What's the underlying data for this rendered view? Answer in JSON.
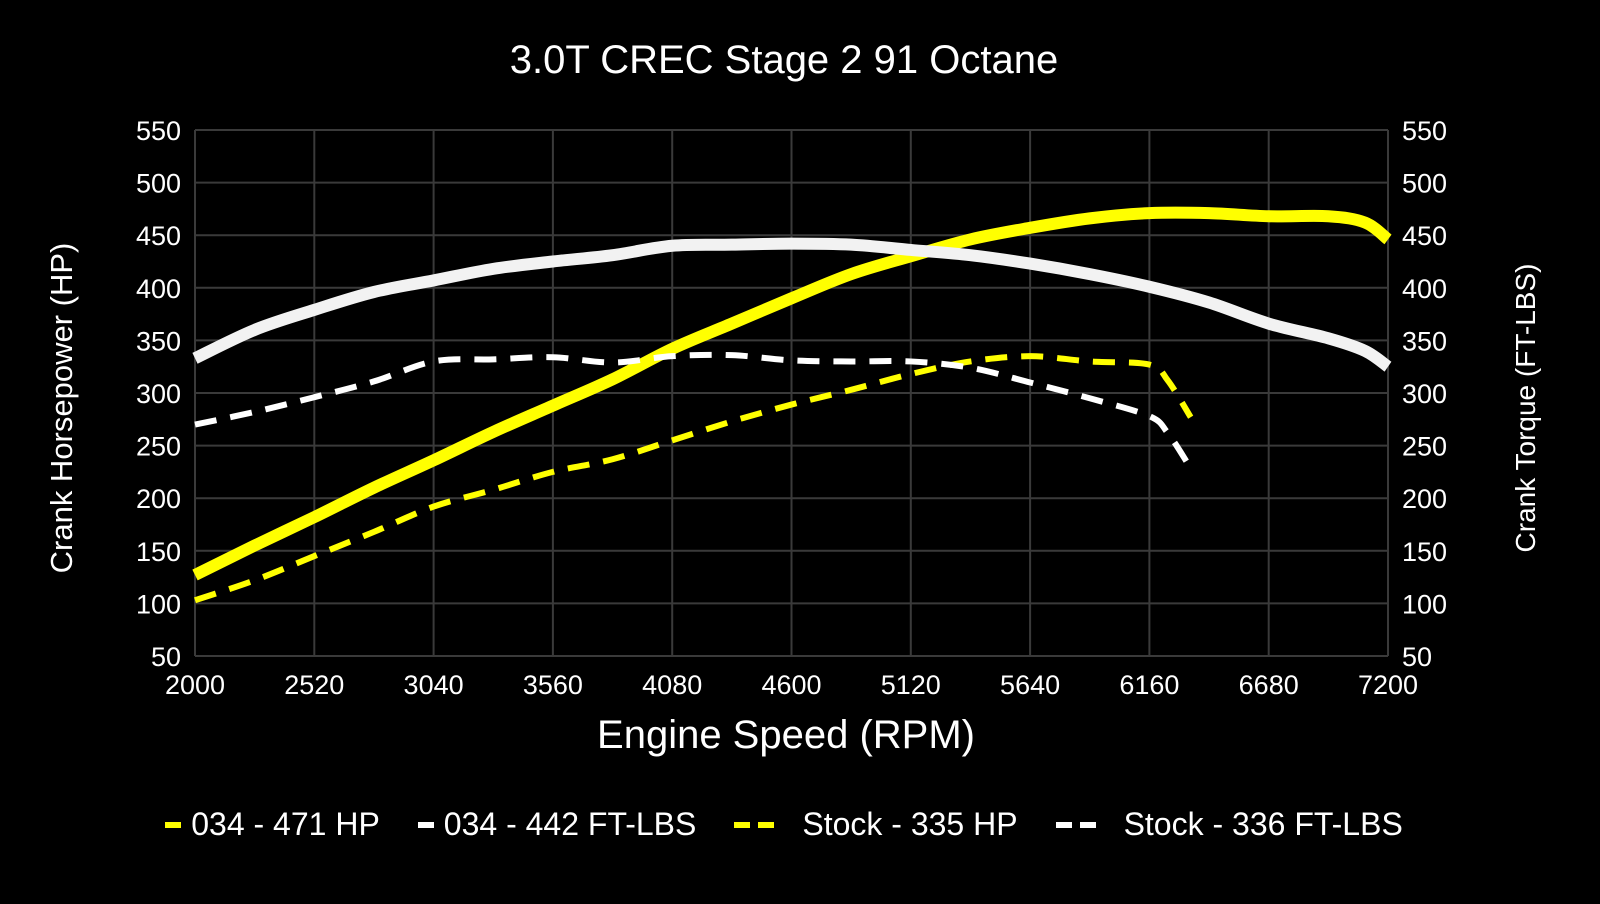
{
  "chart_data": {
    "type": "line",
    "title": "3.0T CREC Stage 2 91 Octane",
    "xlabel": "Engine Speed (RPM)",
    "ylabel": "Crank Horsepower (HP)",
    "ylabel_right": "Crank Torque (FT-LBS)",
    "xlim": [
      2000,
      7200
    ],
    "ylim": [
      50,
      550
    ],
    "ylim_right": [
      50,
      550
    ],
    "x_ticks": [
      "2000",
      "2520",
      "3040",
      "3560",
      "4080",
      "4600",
      "5120",
      "5640",
      "6160",
      "6680",
      "7200"
    ],
    "y_ticks": [
      "50",
      "100",
      "150",
      "200",
      "250",
      "300",
      "350",
      "400",
      "450",
      "500",
      "550"
    ],
    "grid": true,
    "legend_position": "bottom",
    "series": [
      {
        "name": "034 - 471 HP",
        "color": "#FFFF00",
        "style": "solid",
        "x": [
          2000,
          2260,
          2520,
          2780,
          3040,
          3300,
          3560,
          3820,
          4080,
          4340,
          4600,
          4860,
          5120,
          5380,
          5640,
          5900,
          6160,
          6420,
          6680,
          6940,
          7100,
          7200
        ],
        "y": [
          127,
          155,
          182,
          210,
          236,
          263,
          288,
          313,
          342,
          366,
          390,
          413,
          430,
          446,
          457,
          466,
          471,
          471,
          468,
          468,
          462,
          446
        ]
      },
      {
        "name": "034 - 442 FT-LBS",
        "color": "#F2F2F2",
        "style": "solid",
        "x": [
          2000,
          2260,
          2520,
          2780,
          3040,
          3300,
          3560,
          3820,
          4080,
          4340,
          4600,
          4860,
          5120,
          5380,
          5640,
          5900,
          6160,
          6420,
          6680,
          6940,
          7100,
          7200
        ],
        "y": [
          333,
          360,
          379,
          396,
          407,
          418,
          425,
          431,
          440,
          441,
          442,
          441,
          436,
          431,
          423,
          413,
          401,
          386,
          366,
          352,
          340,
          325
        ]
      },
      {
        "name": "Stock - 335 HP",
        "color": "#FFFF00",
        "style": "dashed",
        "x": [
          2000,
          2260,
          2520,
          2780,
          3040,
          3300,
          3560,
          3820,
          4080,
          4340,
          4600,
          4860,
          5120,
          5380,
          5640,
          5900,
          6160,
          6240,
          6340
        ],
        "y": [
          103,
          122,
          145,
          168,
          192,
          208,
          225,
          237,
          255,
          273,
          289,
          303,
          318,
          330,
          335,
          330,
          327,
          312,
          277
        ]
      },
      {
        "name": "Stock - 336 FT-LBS",
        "color": "#FFFFFF",
        "style": "dashed",
        "x": [
          2000,
          2260,
          2520,
          2780,
          3040,
          3300,
          3560,
          3820,
          4080,
          4340,
          4600,
          4860,
          5120,
          5380,
          5640,
          5900,
          6160,
          6240,
          6330
        ],
        "y": [
          270,
          282,
          296,
          311,
          330,
          332,
          334,
          329,
          335,
          336,
          331,
          330,
          330,
          324,
          310,
          295,
          278,
          262,
          232
        ]
      }
    ]
  },
  "legend": [
    {
      "label": "034 - 471 HP"
    },
    {
      "label": "034 - 442 FT-LBS"
    },
    {
      "label": "Stock - 335 HP"
    },
    {
      "label": "Stock - 336 FT-LBS"
    }
  ]
}
